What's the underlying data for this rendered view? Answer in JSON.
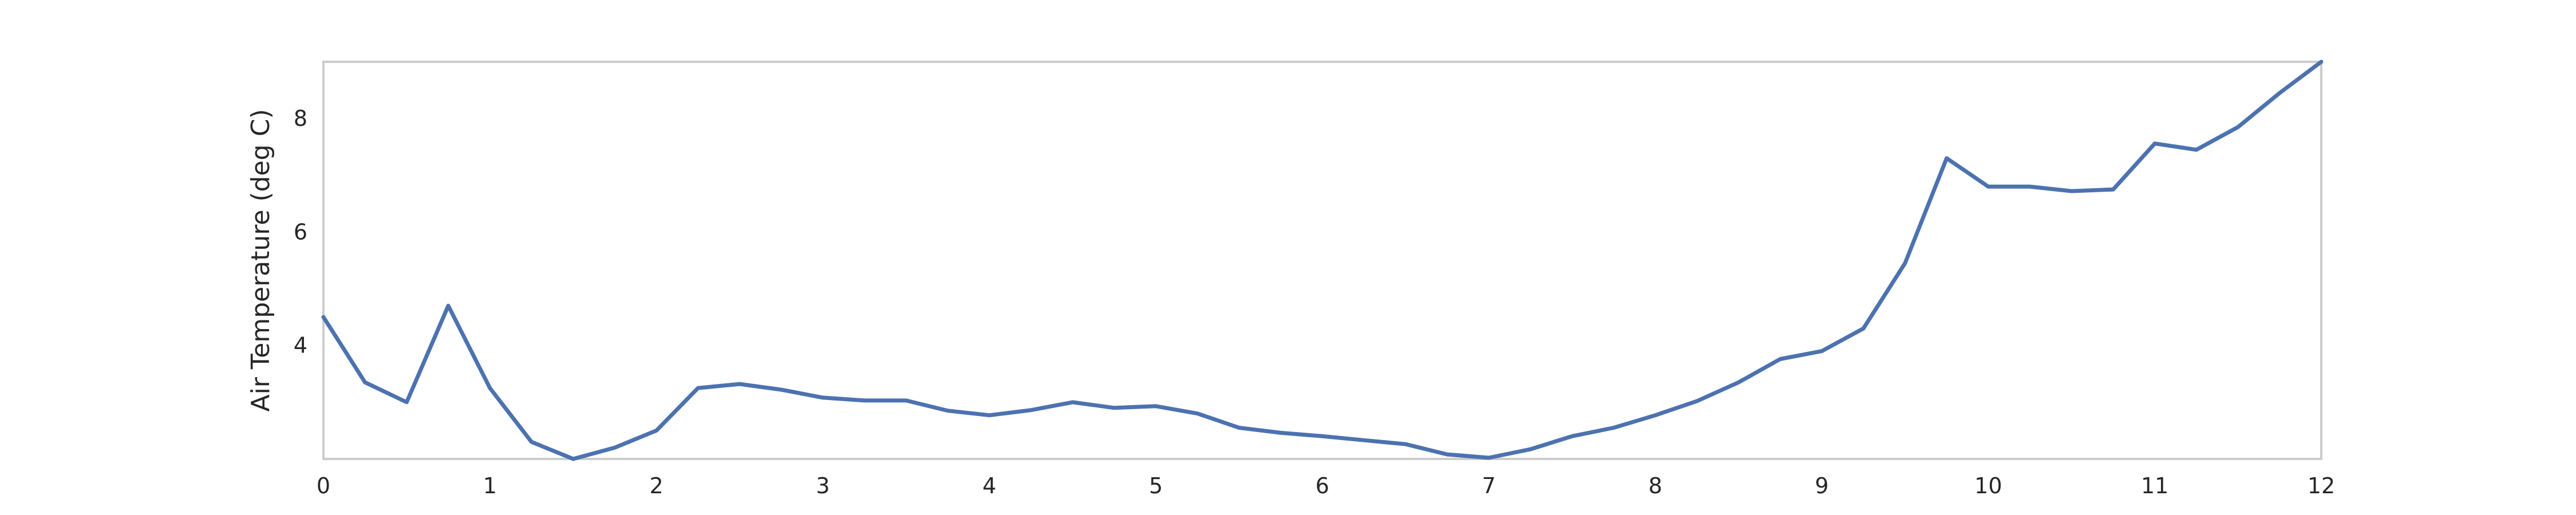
{
  "chart_data": {
    "type": "line",
    "title": "",
    "xlabel": "",
    "ylabel": "Air Temperature (deg C)",
    "xlim": [
      0,
      12
    ],
    "ylim": [
      2.0,
      9.0
    ],
    "xticks": [
      0,
      1,
      2,
      3,
      4,
      5,
      6,
      7,
      8,
      9,
      10,
      11,
      12
    ],
    "yticks": [
      4,
      6,
      8
    ],
    "grid": false,
    "legend": "none",
    "line_color": "#4c72b0",
    "frame_color": "#cccccc",
    "series": [
      {
        "x": [
          0,
          0.25,
          0.5,
          0.75,
          1.0,
          1.25,
          1.5,
          1.75,
          2.0,
          2.25,
          2.5,
          2.75,
          3.0,
          3.25,
          3.5,
          3.75,
          4.0,
          4.25,
          4.5,
          4.75,
          5.0,
          5.25,
          5.5,
          5.75,
          6.0,
          6.25,
          6.5,
          6.75,
          7.0,
          7.25,
          7.5,
          7.75,
          8.0,
          8.25,
          8.5,
          8.75,
          9.0,
          9.25,
          9.5,
          9.75,
          10.0,
          10.25,
          10.5,
          10.75,
          11.0,
          11.25,
          11.5,
          11.75,
          12.0
        ],
        "values": [
          4.5,
          3.35,
          3.0,
          4.7,
          3.25,
          2.3,
          2.0,
          2.2,
          2.5,
          3.25,
          3.32,
          3.22,
          3.08,
          3.03,
          3.03,
          2.85,
          2.77,
          2.86,
          3.0,
          2.9,
          2.93,
          2.8,
          2.55,
          2.46,
          2.4,
          2.33,
          2.26,
          2.08,
          2.02,
          2.17,
          2.4,
          2.55,
          2.77,
          3.02,
          3.35,
          3.76,
          3.9,
          4.3,
          5.45,
          7.3,
          6.8,
          6.8,
          6.72,
          6.75,
          7.56,
          7.45,
          7.85,
          8.45,
          9.0
        ]
      }
    ]
  }
}
